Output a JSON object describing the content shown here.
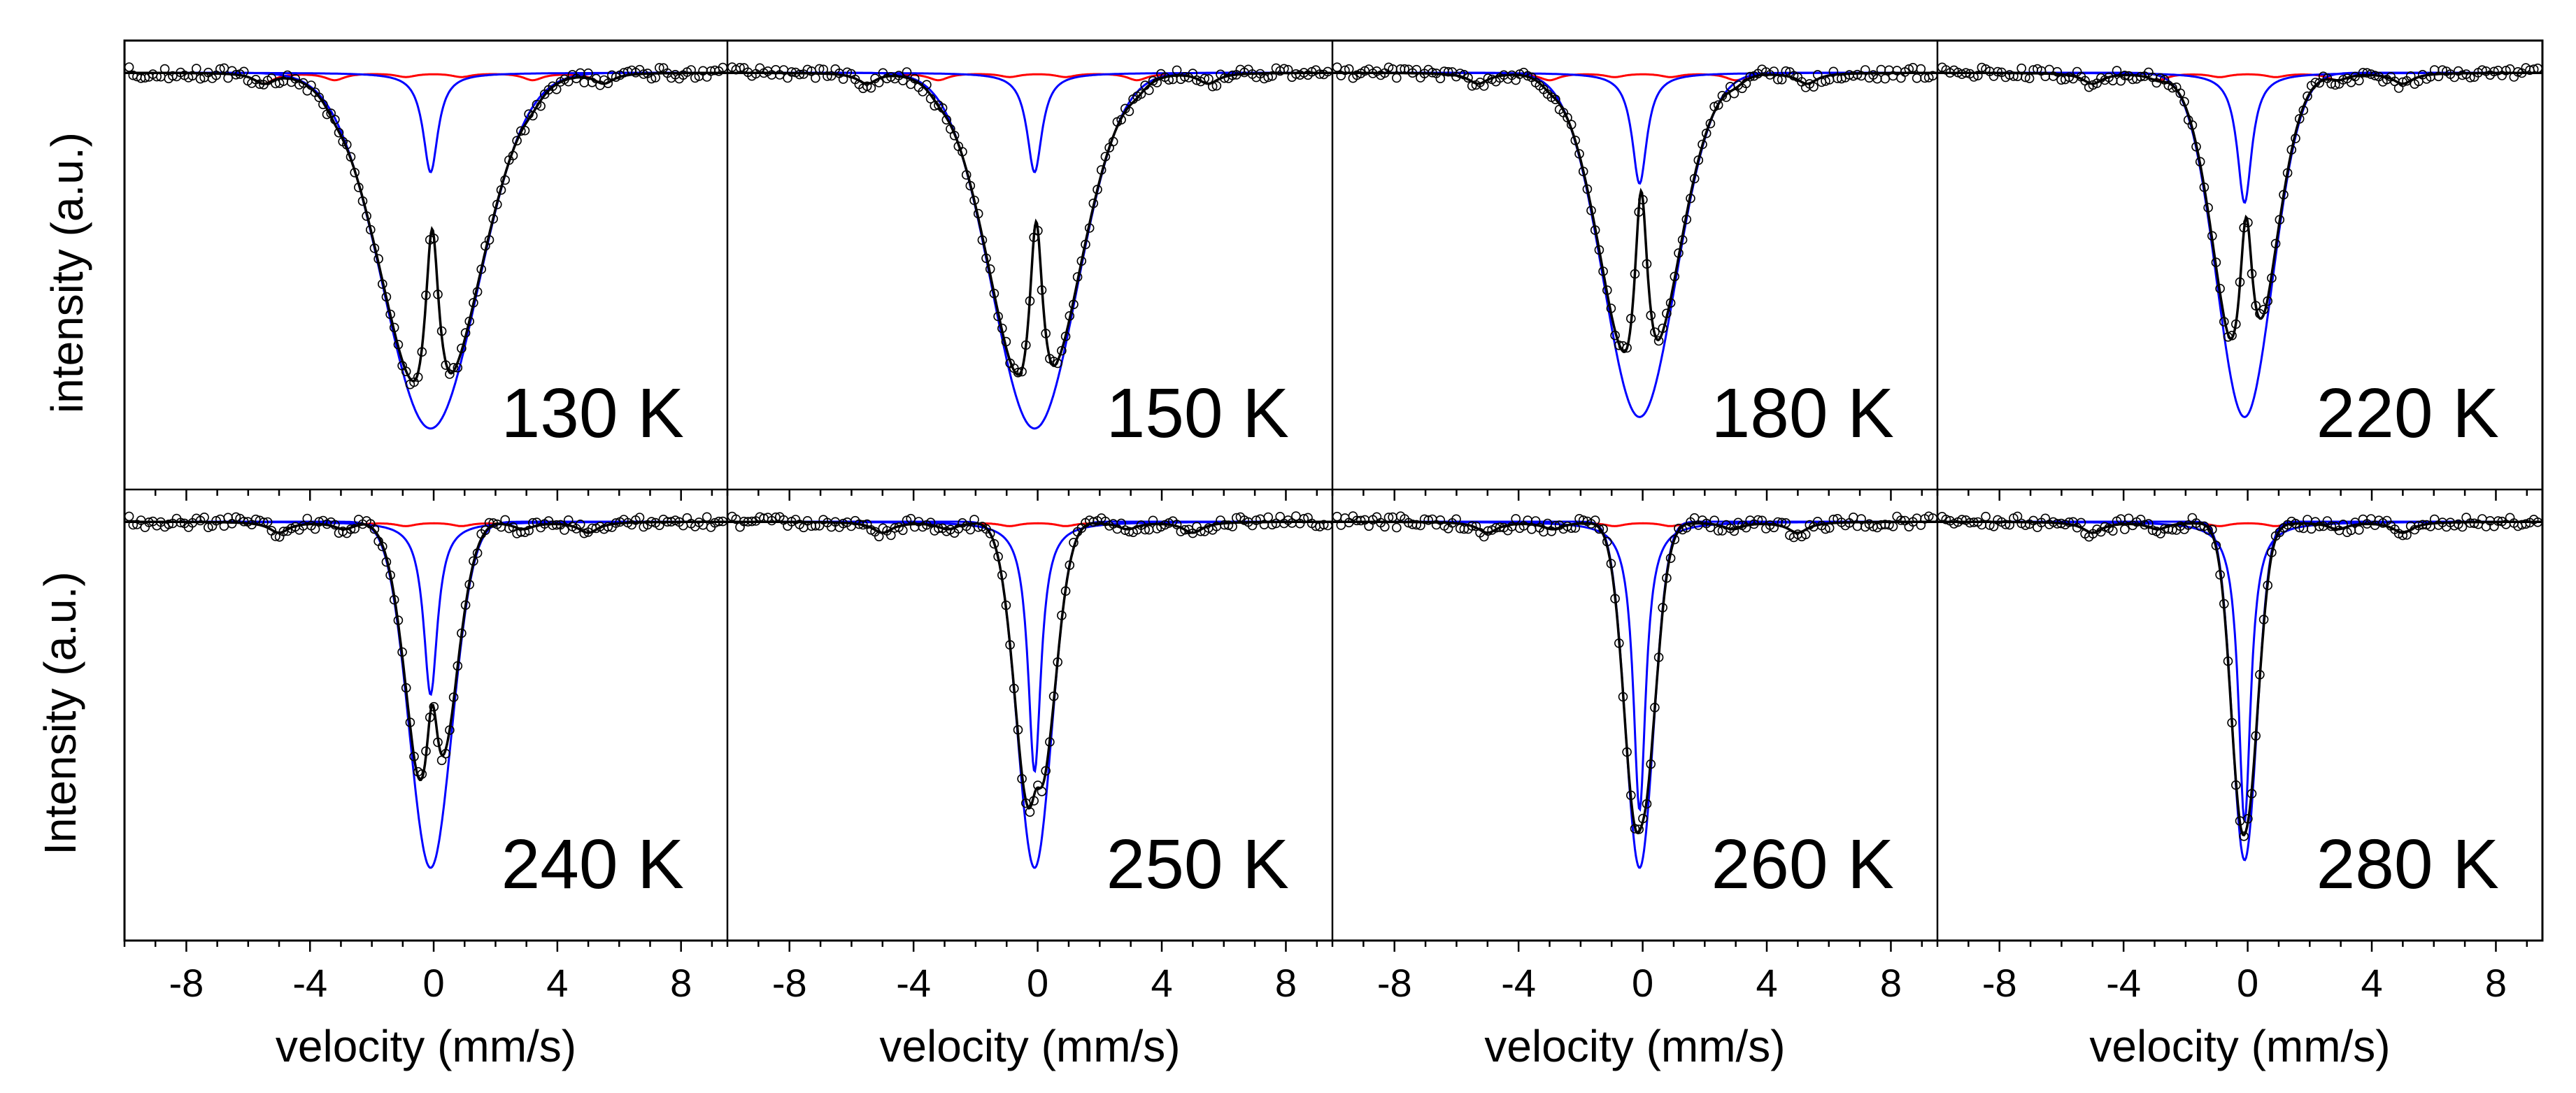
{
  "colors": {
    "data_points": "#000000",
    "total_fit": "#000000",
    "paramagnetic_component": "#0000ff",
    "magnetic_component": "#ff0000"
  },
  "chart_data": {
    "type": "scatter",
    "layout": "2x4 panel grid, shared x axis per column",
    "xlabel": "velocity (mm/s)",
    "ylabel_top_row": "intensity (a.u.)",
    "ylabel_bottom_row": "Intensity (a.u.)",
    "xlim": [
      -10,
      9.5
    ],
    "xticks": [
      -8,
      -4,
      0,
      4,
      8
    ],
    "tick_labels": [
      "-8",
      "-4",
      "0",
      "4",
      "8"
    ],
    "ylim": [
      0,
      1
    ],
    "yticks": [],
    "grid": false,
    "legend": "none",
    "series_description": [
      "open-circle data points",
      "black total fit",
      "blue subcomponents",
      "red magnetic subcomponent"
    ],
    "panels": [
      {
        "label": "130 K",
        "min_depth": 0.93,
        "outer_halfwidth": 2.9,
        "inner_halfwidth": 0.55,
        "central_peak_depth": 0.53,
        "blue_narrow_depth": 0.26,
        "red_sextet": [
          -5.5,
          -3.2,
          -0.9,
          0.9,
          3.2,
          5.5
        ]
      },
      {
        "label": "150 K",
        "min_depth": 0.93,
        "outer_halfwidth": 2.6,
        "inner_halfwidth": 0.5,
        "central_peak_depth": 0.55,
        "blue_narrow_depth": 0.26,
        "red_sextet": [
          -5.5,
          -3.2,
          -0.9,
          0.9,
          3.2,
          5.5
        ]
      },
      {
        "label": "180 K",
        "min_depth": 0.9,
        "outer_halfwidth": 2.2,
        "inner_halfwidth": 0.5,
        "central_peak_depth": 0.6,
        "blue_narrow_depth": 0.29,
        "red_sextet": [
          -5.3,
          -3.0,
          -0.9,
          0.9,
          3.0,
          5.3
        ]
      },
      {
        "label": "220 K",
        "min_depth": 0.9,
        "outer_halfwidth": 1.7,
        "inner_halfwidth": 0.6,
        "central_peak_depth": 0.53,
        "blue_narrow_depth": 0.34,
        "red_sextet": [
          -5.0,
          -2.9,
          -0.9,
          0.9,
          2.9,
          5.0
        ]
      },
      {
        "label": "240 K",
        "min_depth": 0.9,
        "outer_halfwidth": 1.3,
        "inner_halfwidth": 0.6,
        "central_peak_depth": 0.43,
        "blue_narrow_depth": 0.45,
        "red_sextet": [
          -5.0,
          -2.9,
          -0.9,
          0.9,
          2.9,
          5.0
        ]
      },
      {
        "label": "250 K",
        "min_depth": 0.9,
        "outer_halfwidth": 1.05,
        "inner_halfwidth": 0.55,
        "central_peak_depth": 0.21,
        "blue_narrow_depth": 0.65,
        "red_sextet": [
          -5.0,
          -2.9,
          -0.9,
          0.9,
          2.9,
          5.0
        ]
      },
      {
        "label": "260 K",
        "min_depth": 0.9,
        "outer_halfwidth": 0.85,
        "inner_halfwidth": 0.5,
        "central_peak_depth": 0.11,
        "blue_narrow_depth": 0.75,
        "red_sextet": [
          -5.0,
          -2.9,
          -0.9,
          0.9,
          2.9,
          5.0
        ]
      },
      {
        "label": "280 K",
        "min_depth": 0.88,
        "outer_halfwidth": 0.75,
        "inner_halfwidth": 0.5,
        "central_peak_depth": 0.08,
        "blue_narrow_depth": 0.78,
        "red_sextet": [
          -5.0,
          -2.9,
          -0.9,
          0.9,
          2.9,
          5.0
        ]
      }
    ]
  }
}
